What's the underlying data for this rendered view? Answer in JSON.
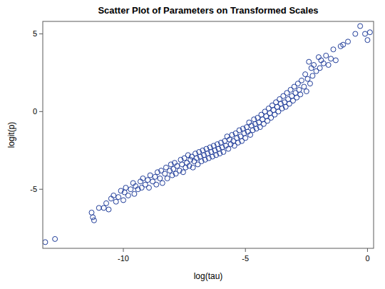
{
  "chart_data": {
    "type": "scatter",
    "title": "Scatter Plot of Parameters on Transformed Scales",
    "x_label": "log(tau)",
    "y_label": "logit(p)",
    "color": "#1f3c99",
    "marker": "circle",
    "grid": false,
    "xlim": [
      -13.3,
      0.25
    ],
    "ylim": [
      -8.8,
      5.8
    ],
    "xticks": [
      -10,
      -5,
      0
    ],
    "yticks": [
      -5,
      0,
      5
    ],
    "x": [
      -13.2,
      -12.8,
      -11.3,
      -11.25,
      -11.2,
      -11.0,
      -10.8,
      -10.7,
      -10.6,
      -10.5,
      -10.4,
      -10.3,
      -10.2,
      -10.1,
      -10.0,
      -9.95,
      -9.9,
      -9.8,
      -9.7,
      -9.6,
      -9.55,
      -9.5,
      -9.4,
      -9.3,
      -9.25,
      -9.2,
      -9.1,
      -9.0,
      -8.95,
      -8.9,
      -8.8,
      -8.7,
      -8.65,
      -8.6,
      -8.5,
      -8.45,
      -8.4,
      -8.3,
      -8.25,
      -8.2,
      -8.1,
      -8.05,
      -8.0,
      -7.95,
      -7.9,
      -7.85,
      -7.8,
      -7.7,
      -7.65,
      -7.6,
      -7.55,
      -7.5,
      -7.45,
      -7.4,
      -7.35,
      -7.3,
      -7.25,
      -7.2,
      -7.15,
      -7.1,
      -7.05,
      -7.0,
      -6.95,
      -6.9,
      -6.85,
      -6.8,
      -6.75,
      -6.7,
      -6.65,
      -6.6,
      -6.55,
      -6.5,
      -6.45,
      -6.4,
      -6.35,
      -6.3,
      -6.25,
      -6.2,
      -6.15,
      -6.1,
      -6.05,
      -6.0,
      -5.95,
      -5.9,
      -5.85,
      -5.8,
      -5.75,
      -5.7,
      -5.65,
      -5.6,
      -5.55,
      -5.5,
      -5.45,
      -5.4,
      -5.35,
      -5.3,
      -5.25,
      -5.2,
      -5.15,
      -5.1,
      -5.05,
      -5.0,
      -4.95,
      -4.9,
      -4.85,
      -4.8,
      -4.75,
      -4.7,
      -4.65,
      -4.6,
      -4.55,
      -4.5,
      -4.45,
      -4.4,
      -4.35,
      -4.3,
      -4.25,
      -4.2,
      -4.15,
      -4.1,
      -4.05,
      -4.0,
      -3.95,
      -3.9,
      -3.85,
      -3.8,
      -3.75,
      -3.7,
      -3.65,
      -3.6,
      -3.55,
      -3.5,
      -3.45,
      -3.4,
      -3.35,
      -3.3,
      -3.25,
      -3.2,
      -3.15,
      -3.1,
      -3.05,
      -3.0,
      -2.95,
      -2.9,
      -2.85,
      -2.8,
      -2.75,
      -2.7,
      -2.6,
      -2.55,
      -2.5,
      -2.45,
      -2.4,
      -2.35,
      -2.3,
      -2.25,
      -2.2,
      -2.1,
      -2.0,
      -1.95,
      -1.9,
      -1.8,
      -1.7,
      -1.6,
      -1.5,
      -1.4,
      -1.3,
      -1.1,
      -1.0,
      -0.8,
      -0.5,
      -0.3,
      -0.1,
      0.0,
      0.1
    ],
    "values": [
      -8.4,
      -8.2,
      -6.5,
      -6.8,
      -7.0,
      -6.2,
      -6.2,
      -5.9,
      -6.3,
      -5.6,
      -5.4,
      -5.8,
      -5.5,
      -5.1,
      -5.7,
      -5.2,
      -4.9,
      -5.4,
      -5.0,
      -4.6,
      -5.3,
      -4.8,
      -5.0,
      -4.5,
      -4.9,
      -4.3,
      -4.7,
      -4.4,
      -4.9,
      -4.1,
      -4.5,
      -4.2,
      -4.7,
      -3.9,
      -4.3,
      -3.8,
      -4.6,
      -4.0,
      -3.6,
      -4.3,
      -3.8,
      -3.4,
      -4.1,
      -3.7,
      -3.3,
      -4.0,
      -3.5,
      -3.8,
      -3.1,
      -3.4,
      -3.9,
      -3.0,
      -3.6,
      -3.3,
      -2.8,
      -3.5,
      -3.1,
      -2.9,
      -3.6,
      -3.2,
      -2.7,
      -3.0,
      -3.4,
      -2.6,
      -2.9,
      -3.2,
      -2.5,
      -2.8,
      -3.1,
      -2.4,
      -2.7,
      -3.0,
      -2.3,
      -2.6,
      -2.9,
      -2.2,
      -2.5,
      -2.8,
      -2.1,
      -2.4,
      -2.7,
      -2.0,
      -2.3,
      -2.6,
      -1.9,
      -2.2,
      -1.6,
      -2.4,
      -1.8,
      -2.1,
      -1.5,
      -1.9,
      -2.2,
      -1.4,
      -1.7,
      -2.0,
      -1.2,
      -1.6,
      -1.9,
      -1.1,
      -1.4,
      -1.7,
      -1.0,
      -1.3,
      -0.7,
      -1.5,
      -0.9,
      -1.2,
      -0.5,
      -0.8,
      -1.1,
      -0.4,
      -0.7,
      -1.0,
      -0.2,
      -0.5,
      -0.8,
      0.0,
      -0.3,
      -0.6,
      0.2,
      -0.1,
      -0.4,
      0.4,
      0.1,
      -0.2,
      0.6,
      0.3,
      0.0,
      0.8,
      0.5,
      0.2,
      1.0,
      0.6,
      0.3,
      1.2,
      0.8,
      0.5,
      1.4,
      1.0,
      0.7,
      1.6,
      1.2,
      0.9,
      1.8,
      1.4,
      1.1,
      2.0,
      1.6,
      2.4,
      1.3,
      2.1,
      3.2,
      1.8,
      2.8,
      2.3,
      3.0,
      2.6,
      3.5,
      2.8,
      3.3,
      3.1,
      3.6,
      3.0,
      3.4,
      4.0,
      3.3,
      4.2,
      4.3,
      4.5,
      5.0,
      5.5,
      5.0,
      4.6,
      5.1
    ]
  }
}
